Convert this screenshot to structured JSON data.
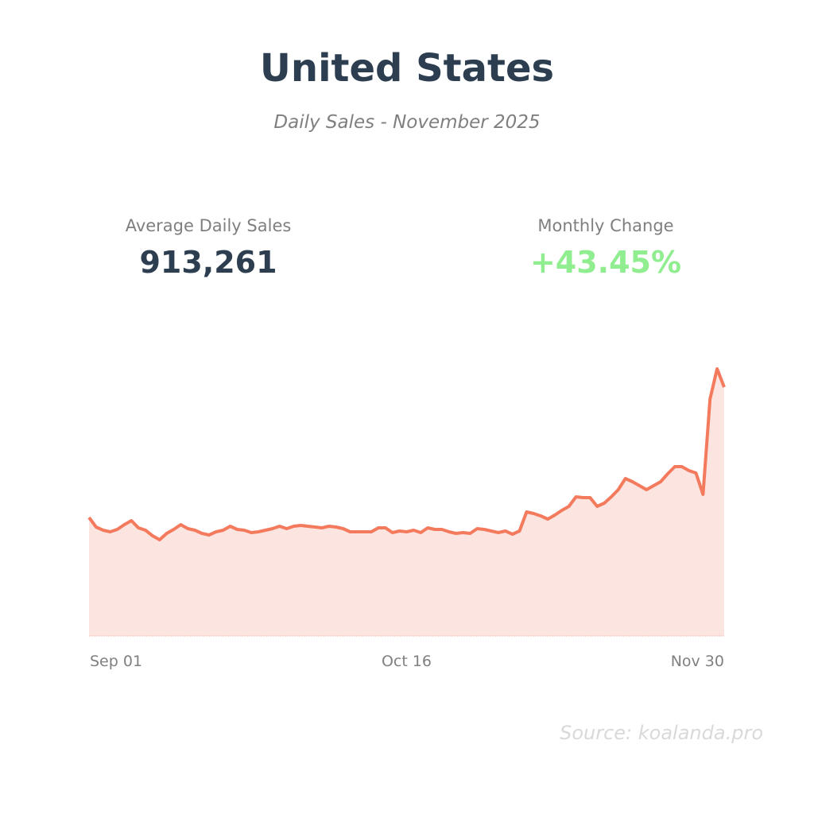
{
  "title": "United States",
  "subtitle": "Daily Sales - November 2025",
  "stats": {
    "avg_label": "Average Daily Sales",
    "avg_value": "913,261",
    "change_label": "Monthly Change",
    "change_value": "+43.45%"
  },
  "source": "Source: koalanda.pro",
  "colors": {
    "line": "#f47a5e",
    "fill": "#fce5e0",
    "positive": "#90ee90",
    "title": "#2c3e50"
  },
  "chart_data": {
    "type": "area",
    "title": "Daily Sales - November 2025",
    "xlabel": "",
    "ylabel": "",
    "x_range": [
      "Sep 01",
      "Nov 30"
    ],
    "xticks": [
      {
        "index": 0,
        "label": "Sep 01"
      },
      {
        "index": 45,
        "label": "Oct 16"
      },
      {
        "index": 90,
        "label": "Nov 30"
      }
    ],
    "ylim": [
      0,
      1700000
    ],
    "grid": false,
    "values": [
      745000,
      685000,
      665000,
      655000,
      670000,
      700000,
      725000,
      680000,
      665000,
      630000,
      605000,
      645000,
      670000,
      700000,
      675000,
      665000,
      645000,
      635000,
      655000,
      665000,
      690000,
      670000,
      665000,
      650000,
      655000,
      665000,
      675000,
      690000,
      675000,
      690000,
      695000,
      690000,
      685000,
      680000,
      690000,
      685000,
      675000,
      655000,
      655000,
      655000,
      655000,
      680000,
      680000,
      650000,
      660000,
      655000,
      665000,
      650000,
      680000,
      670000,
      670000,
      655000,
      645000,
      650000,
      645000,
      675000,
      670000,
      660000,
      650000,
      660000,
      640000,
      660000,
      780000,
      770000,
      755000,
      735000,
      760000,
      790000,
      815000,
      875000,
      870000,
      870000,
      815000,
      835000,
      875000,
      920000,
      990000,
      970000,
      945000,
      920000,
      945000,
      970000,
      1020000,
      1065000,
      1065000,
      1040000,
      1025000,
      890000,
      1490000,
      1680000,
      1565000
    ]
  }
}
